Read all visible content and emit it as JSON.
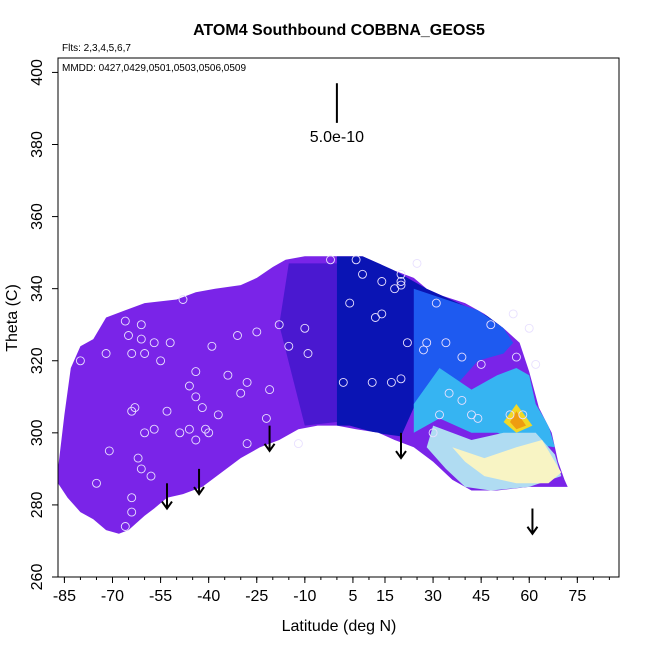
{
  "chart_data": {
    "type": "contour-scatter",
    "title": "ATOM4 Southbound COBBNA_GEOS5",
    "annotations": [
      "Flts: 2,3,4,5,6,7",
      "MMDD: 0427,0429,0501,0503,0506,0509"
    ],
    "xlabel": "Latitude (deg N)",
    "ylabel": "Theta (C)",
    "xlim": [
      -87,
      88
    ],
    "ylim": [
      260,
      404
    ],
    "xticks": [
      -85,
      -70,
      -55,
      -40,
      -25,
      -10,
      5,
      15,
      30,
      45,
      60,
      75
    ],
    "xtick_labels": [
      "-85",
      "-70",
      "-55",
      "-40",
      "-25",
      "-10",
      "5",
      "15",
      "30",
      "45",
      "60",
      "75"
    ],
    "yticks": [
      260,
      280,
      300,
      320,
      340,
      360,
      380,
      400
    ],
    "ytick_labels": [
      "260",
      "280",
      "300",
      "320",
      "340",
      "360",
      "380",
      "400"
    ],
    "scale_bar": {
      "label": "5.0e-10",
      "x": 0,
      "y_from": 386,
      "y_to": 397
    },
    "colors": {
      "violet": "#7a24e8",
      "indigo": "#4a18d0",
      "navy": "#0a14b4",
      "blue": "#1e5af0",
      "sky": "#36b4f2",
      "paleblue": "#b0dcf2",
      "cream": "#f8f4c4",
      "yellow": "#f2d826",
      "orange": "#ee9c10"
    },
    "boundary": [
      [
        -87,
        290
      ],
      [
        -85,
        305
      ],
      [
        -83,
        318
      ],
      [
        -80,
        324
      ],
      [
        -76,
        326
      ],
      [
        -72,
        332
      ],
      [
        -66,
        334
      ],
      [
        -60,
        336
      ],
      [
        -50,
        337
      ],
      [
        -44,
        339
      ],
      [
        -38,
        340
      ],
      [
        -30,
        341
      ],
      [
        -25,
        343
      ],
      [
        -20,
        346
      ],
      [
        -16,
        348
      ],
      [
        -10,
        349
      ],
      [
        -2,
        349
      ],
      [
        3,
        349
      ],
      [
        8,
        349
      ],
      [
        13,
        347
      ],
      [
        18,
        345
      ],
      [
        24,
        343
      ],
      [
        28,
        340
      ],
      [
        33,
        338
      ],
      [
        40,
        336
      ],
      [
        46,
        333
      ],
      [
        52,
        329
      ],
      [
        57,
        325
      ],
      [
        60,
        317
      ],
      [
        63,
        307
      ],
      [
        67,
        300
      ],
      [
        69,
        292
      ],
      [
        71,
        287
      ],
      [
        72,
        285
      ],
      [
        60,
        285
      ],
      [
        50,
        284
      ],
      [
        42,
        284
      ],
      [
        36,
        287
      ],
      [
        30,
        292
      ],
      [
        24,
        296
      ],
      [
        18,
        298
      ],
      [
        13,
        300
      ],
      [
        6,
        301
      ],
      [
        0,
        302
      ],
      [
        -6,
        302
      ],
      [
        -12,
        301
      ],
      [
        -18,
        298
      ],
      [
        -24,
        296
      ],
      [
        -30,
        293
      ],
      [
        -36,
        289
      ],
      [
        -42,
        285
      ],
      [
        -48,
        283
      ],
      [
        -53,
        282
      ],
      [
        -57,
        279
      ],
      [
        -60,
        277
      ],
      [
        -65,
        273
      ],
      [
        -68,
        272
      ],
      [
        -72,
        273
      ],
      [
        -76,
        276
      ],
      [
        -80,
        278
      ],
      [
        -84,
        282
      ],
      [
        -87,
        286
      ]
    ],
    "regions": [
      {
        "color": "indigo",
        "points": [
          [
            -15,
            347
          ],
          [
            0,
            347
          ],
          [
            0,
            303
          ],
          [
            -10,
            302
          ],
          [
            -18,
            330
          ]
        ]
      },
      {
        "color": "navy",
        "points": [
          [
            0,
            349
          ],
          [
            10,
            349
          ],
          [
            20,
            344
          ],
          [
            28,
            340
          ],
          [
            38,
            336
          ],
          [
            48,
            332
          ],
          [
            52,
            329
          ],
          [
            48,
            326
          ],
          [
            40,
            322
          ],
          [
            32,
            312
          ],
          [
            24,
            307
          ],
          [
            20,
            299
          ],
          [
            12,
            300
          ],
          [
            4,
            302
          ],
          [
            0,
            302
          ]
        ]
      },
      {
        "color": "blue",
        "points": [
          [
            24,
            340
          ],
          [
            34,
            337
          ],
          [
            44,
            334
          ],
          [
            52,
            329
          ],
          [
            55,
            325
          ],
          [
            52,
            322
          ],
          [
            44,
            320
          ],
          [
            36,
            312
          ],
          [
            30,
            306
          ],
          [
            24,
            307
          ]
        ]
      },
      {
        "color": "sky",
        "points": [
          [
            32,
            318
          ],
          [
            42,
            312
          ],
          [
            50,
            316
          ],
          [
            56,
            318
          ],
          [
            60,
            316
          ],
          [
            62,
            308
          ],
          [
            66,
            302
          ],
          [
            68,
            296
          ],
          [
            60,
            297
          ],
          [
            50,
            300
          ],
          [
            42,
            300
          ],
          [
            32,
            304
          ],
          [
            24,
            300
          ],
          [
            24,
            308
          ]
        ]
      },
      {
        "color": "paleblue",
        "points": [
          [
            30,
            302
          ],
          [
            42,
            298
          ],
          [
            52,
            300
          ],
          [
            62,
            300
          ],
          [
            68,
            294
          ],
          [
            70,
            288
          ],
          [
            60,
            285
          ],
          [
            48,
            284
          ],
          [
            40,
            285
          ],
          [
            34,
            290
          ],
          [
            28,
            296
          ]
        ]
      },
      {
        "color": "cream",
        "points": [
          [
            36,
            296
          ],
          [
            46,
            293
          ],
          [
            56,
            296
          ],
          [
            64,
            298
          ],
          [
            70,
            289
          ],
          [
            66,
            286
          ],
          [
            56,
            286
          ],
          [
            46,
            288
          ],
          [
            40,
            292
          ]
        ]
      },
      {
        "color": "yellow",
        "points": [
          [
            52,
            303
          ],
          [
            56,
            308
          ],
          [
            61,
            302
          ],
          [
            56,
            300
          ]
        ]
      },
      {
        "color": "orange",
        "points": [
          [
            54,
            303
          ],
          [
            56,
            306
          ],
          [
            59,
            302
          ],
          [
            56,
            301
          ]
        ]
      }
    ],
    "points": [
      [
        -80,
        320
      ],
      [
        -66,
        331
      ],
      [
        -65,
        327
      ],
      [
        -61,
        326
      ],
      [
        -61,
        330
      ],
      [
        -57,
        325
      ],
      [
        -55,
        320
      ],
      [
        -52,
        325
      ],
      [
        -64,
        322
      ],
      [
        -60,
        322
      ],
      [
        -72,
        322
      ],
      [
        -48,
        337
      ],
      [
        -46,
        313
      ],
      [
        -44,
        310
      ],
      [
        -44,
        317
      ],
      [
        -42,
        307
      ],
      [
        -41,
        301
      ],
      [
        -39,
        324
      ],
      [
        -37,
        305
      ],
      [
        -34,
        316
      ],
      [
        -31,
        327
      ],
      [
        -30,
        311
      ],
      [
        -28,
        314
      ],
      [
        -25,
        328
      ],
      [
        -21,
        312
      ],
      [
        -18,
        330
      ],
      [
        -15,
        324
      ],
      [
        -10,
        329
      ],
      [
        -9,
        322
      ],
      [
        -12,
        297
      ],
      [
        -64,
        306
      ],
      [
        -63,
        307
      ],
      [
        -60,
        300
      ],
      [
        -57,
        301
      ],
      [
        -53,
        306
      ],
      [
        -49,
        300
      ],
      [
        -46,
        301
      ],
      [
        -40,
        300
      ],
      [
        -44,
        298
      ],
      [
        -71,
        295
      ],
      [
        -62,
        293
      ],
      [
        -61,
        290
      ],
      [
        -58,
        288
      ],
      [
        -64,
        282
      ],
      [
        -64,
        278
      ],
      [
        -66,
        274
      ],
      [
        -75,
        286
      ],
      [
        -2,
        348
      ],
      [
        6,
        348
      ],
      [
        4,
        336
      ],
      [
        8,
        344
      ],
      [
        14,
        342
      ],
      [
        18,
        340
      ],
      [
        12,
        332
      ],
      [
        20,
        341
      ],
      [
        20,
        342
      ],
      [
        20,
        344
      ],
      [
        25,
        347
      ],
      [
        14,
        333
      ],
      [
        22,
        325
      ],
      [
        27,
        323
      ],
      [
        31,
        336
      ],
      [
        28,
        325
      ],
      [
        34,
        325
      ],
      [
        39,
        321
      ],
      [
        45,
        319
      ],
      [
        35,
        311
      ],
      [
        39,
        309
      ],
      [
        42,
        305
      ],
      [
        44,
        304
      ],
      [
        48,
        330
      ],
      [
        55,
        333
      ],
      [
        60,
        329
      ],
      [
        56,
        321
      ],
      [
        62,
        319
      ],
      [
        58,
        305
      ],
      [
        54,
        305
      ],
      [
        32,
        305
      ],
      [
        30,
        300
      ],
      [
        2,
        314
      ],
      [
        11,
        314
      ],
      [
        17,
        314
      ],
      [
        20,
        315
      ],
      [
        -28,
        297
      ],
      [
        -22,
        304
      ]
    ],
    "arrows": [
      {
        "x": -53,
        "y_from": 286,
        "y_to": 279
      },
      {
        "x": -43,
        "y_from": 290,
        "y_to": 283
      },
      {
        "x": -21,
        "y_from": 302,
        "y_to": 295
      },
      {
        "x": 20,
        "y_from": 300,
        "y_to": 293
      },
      {
        "x": 61,
        "y_from": 279,
        "y_to": 272
      }
    ]
  }
}
